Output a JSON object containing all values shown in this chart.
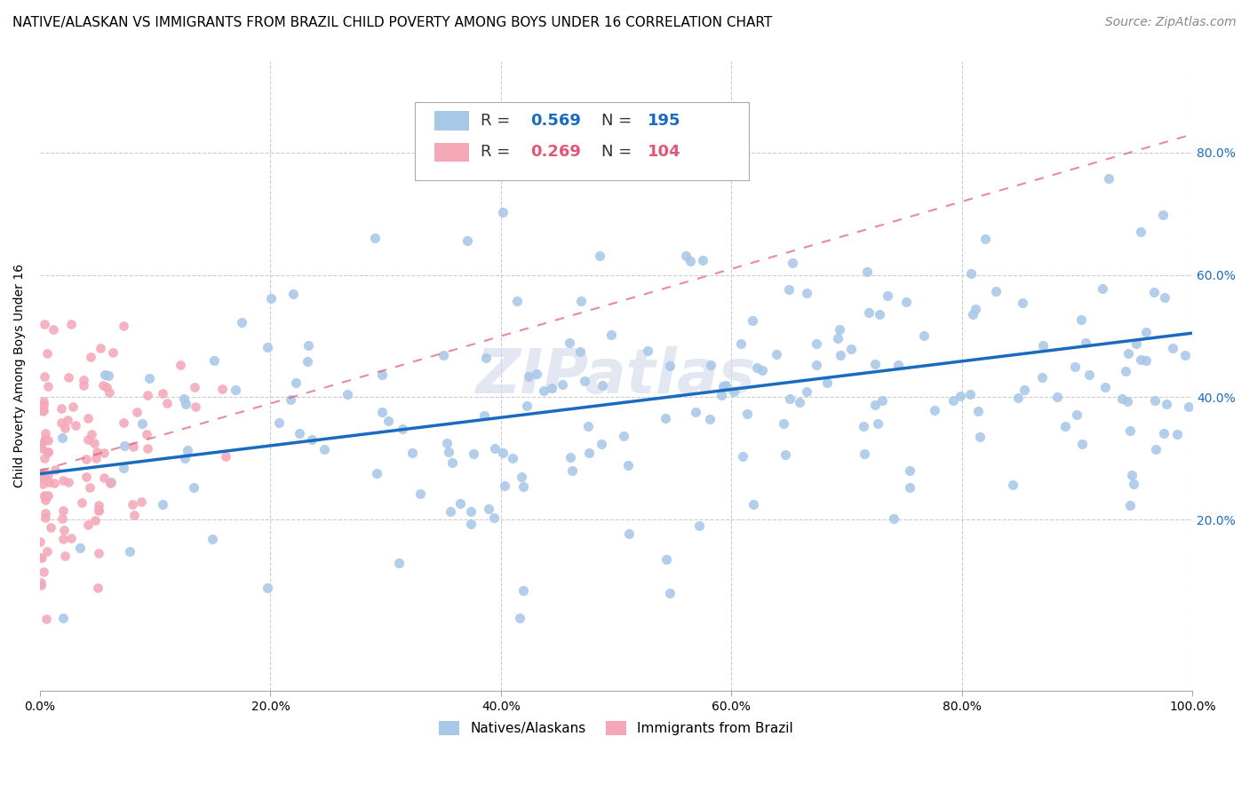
{
  "title": "NATIVE/ALASKAN VS IMMIGRANTS FROM BRAZIL CHILD POVERTY AMONG BOYS UNDER 16 CORRELATION CHART",
  "source": "Source: ZipAtlas.com",
  "xlabel": "",
  "ylabel": "Child Poverty Among Boys Under 16",
  "xlim": [
    0,
    1.0
  ],
  "ylim": [
    -0.08,
    0.95
  ],
  "xtick_labels": [
    "0.0%",
    "20.0%",
    "40.0%",
    "60.0%",
    "80.0%",
    "100.0%"
  ],
  "xtick_values": [
    0.0,
    0.2,
    0.4,
    0.6,
    0.8,
    1.0
  ],
  "ytick_values": [
    0.2,
    0.4,
    0.6,
    0.8
  ],
  "right_ytick_labels": [
    "20.0%",
    "40.0%",
    "60.0%",
    "80.0%"
  ],
  "right_ytick_values": [
    0.2,
    0.4,
    0.6,
    0.8
  ],
  "blue_color": "#a8c8e8",
  "blue_line_color": "#1a6bbf",
  "pink_color": "#f4a8b8",
  "pink_line_color": "#e05878",
  "blue_R": 0.569,
  "blue_N": 195,
  "pink_R": 0.269,
  "pink_N": 104,
  "watermark": "ZIPatlas",
  "watermark_color": "#d0d8e8",
  "title_fontsize": 11,
  "source_fontsize": 10,
  "label_fontsize": 10,
  "tick_fontsize": 10,
  "blue_scatter_seed": 42,
  "pink_scatter_seed": 77,
  "blue_line_intercept": 0.275,
  "blue_line_slope": 0.23,
  "pink_line_intercept": 0.28,
  "pink_line_slope": 0.55
}
